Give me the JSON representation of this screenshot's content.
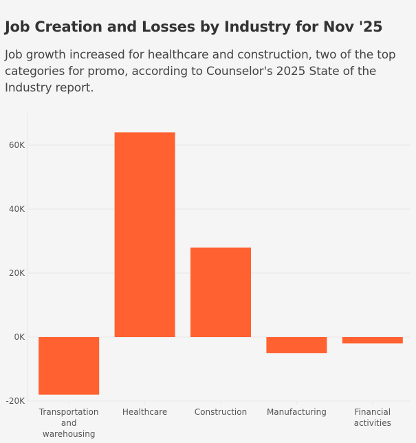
{
  "chart_data": {
    "type": "bar",
    "title": "Job Creation and Losses by Industry for Nov '25",
    "subtitle": "Job growth increased for healthcare and construction, two of the top categories for promo, according to Counselor's 2025 State of the Industry report.",
    "categories": [
      "Transportation and warehousing",
      "Healthcare",
      "Construction",
      "Manufacturing",
      "Financial activities"
    ],
    "category_lines": [
      [
        "Transportation",
        "and",
        "warehousing"
      ],
      [
        "Healthcare"
      ],
      [
        "Construction"
      ],
      [
        "Manufacturing"
      ],
      [
        "Financial",
        "activities"
      ]
    ],
    "values": [
      -18000,
      64000,
      28000,
      -5000,
      -2000
    ],
    "ylim": [
      -20000,
      70000
    ],
    "yticks": [
      -20000,
      0,
      20000,
      40000,
      60000
    ],
    "ytick_labels": [
      "-20K",
      "0K",
      "20K",
      "40K",
      "60K"
    ],
    "xlabel": "",
    "ylabel": "",
    "grid": true,
    "bar_color": "#ff6130",
    "grid_color": "#e8e8e8"
  }
}
